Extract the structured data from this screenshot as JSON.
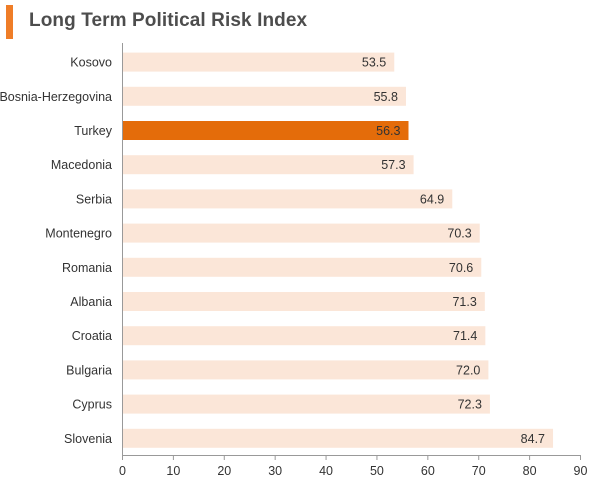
{
  "chart_data": {
    "type": "bar",
    "orientation": "horizontal",
    "title": "Long Term Political Risk Index",
    "categories": [
      "Kosovo",
      "Bosnia-Herzegovina",
      "Turkey",
      "Macedonia",
      "Serbia",
      "Montenegro",
      "Romania",
      "Albania",
      "Croatia",
      "Bulgaria",
      "Cyprus",
      "Slovenia"
    ],
    "values": [
      53.5,
      55.8,
      56.3,
      57.3,
      64.9,
      70.3,
      70.6,
      71.3,
      71.4,
      72.0,
      72.3,
      84.7
    ],
    "value_labels": [
      "53.5",
      "55.8",
      "56.3",
      "57.3",
      "64.9",
      "70.3",
      "70.6",
      "71.3",
      "71.4",
      "72.0",
      "72.3",
      "84.7"
    ],
    "highlight": "Turkey",
    "xlim": [
      0,
      90
    ],
    "xticks": [
      "0",
      "10",
      "20",
      "30",
      "40",
      "50",
      "60",
      "70",
      "80",
      "90"
    ],
    "xtick_values": [
      0,
      10,
      20,
      30,
      40,
      50,
      60,
      70,
      80,
      90
    ],
    "grid": false,
    "colors": {
      "bar": "#fbe6d8",
      "highlight": "#e46c0a",
      "accent": "#ef7d28",
      "axis": "#999999"
    }
  }
}
